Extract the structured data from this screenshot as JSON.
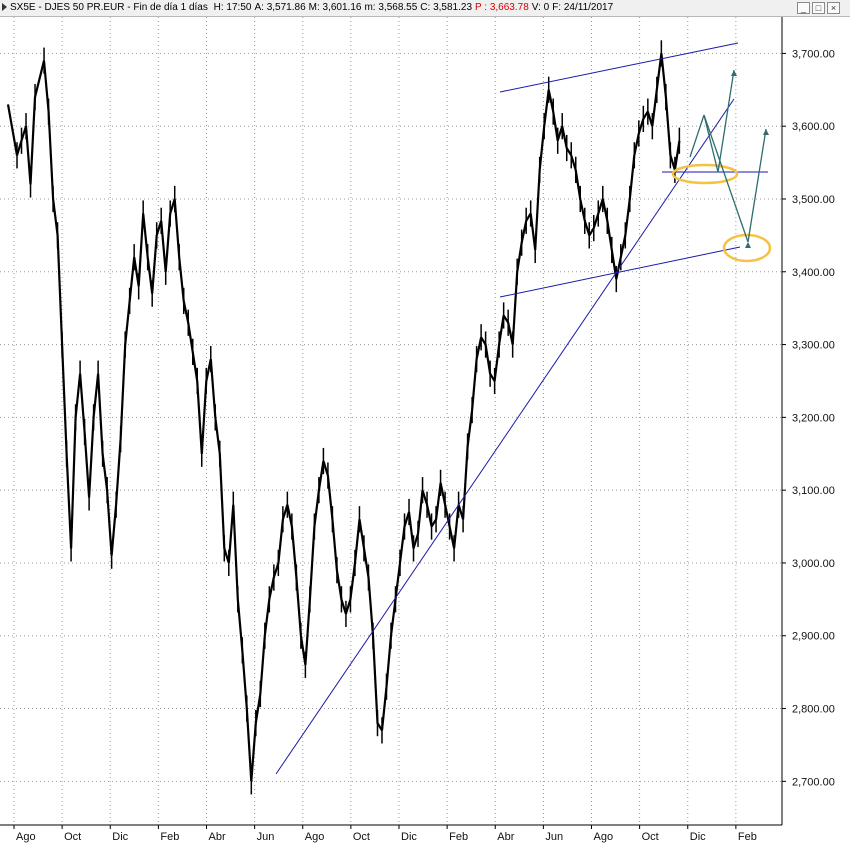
{
  "header": {
    "symbol": "SX5E - DJES 50 PR.EUR - Fin de día 1 días",
    "fields": [
      {
        "label": "H:",
        "value": "17:50",
        "color": "#000000"
      },
      {
        "label": "A:",
        "value": "3,571.86",
        "color": "#000000"
      },
      {
        "label": "M:",
        "value": "3,601.16",
        "color": "#000000"
      },
      {
        "label": "m:",
        "value": "3,568.55",
        "color": "#000000"
      },
      {
        "label": "C:",
        "value": "3,581.23",
        "color": "#000000"
      },
      {
        "label": "P :",
        "value": "3,663.78",
        "color": "#d40000"
      },
      {
        "label": "V:",
        "value": "0",
        "color": "#000000"
      },
      {
        "label": "F:",
        "value": "24/11/2017",
        "color": "#000000"
      }
    ],
    "window_buttons": [
      {
        "name": "minimize-button",
        "glyph": "_"
      },
      {
        "name": "maximize-button",
        "glyph": "□"
      },
      {
        "name": "close-button",
        "glyph": "×"
      }
    ]
  },
  "chart_data": {
    "type": "line",
    "title": "",
    "xlabel": "",
    "ylabel": "",
    "ylim": [
      2640,
      3750
    ],
    "grid": true,
    "y_ticks": [
      "2,700.00",
      "2,800.00",
      "2,900.00",
      "3,000.00",
      "3,100.00",
      "3,200.00",
      "3,300.00",
      "3,400.00",
      "3,500.00",
      "3,600.00",
      "3,700.00"
    ],
    "x_ticks": [
      "Ago",
      "Oct",
      "Dic",
      "Feb",
      "Abr",
      "Jun",
      "Ago",
      "Oct",
      "Dic",
      "Feb",
      "Abr",
      "Jun",
      "Ago",
      "Oct",
      "Dic",
      "Feb"
    ],
    "series": [
      {
        "color": "#000000",
        "points": [
          [
            0,
            3630
          ],
          [
            2,
            3560
          ],
          [
            3,
            3580
          ],
          [
            4,
            3600
          ],
          [
            5,
            3520
          ],
          [
            6,
            3640
          ],
          [
            8,
            3690
          ],
          [
            9,
            3620
          ],
          [
            10,
            3500
          ],
          [
            11,
            3450
          ],
          [
            12,
            3300
          ],
          [
            13,
            3150
          ],
          [
            14,
            3020
          ],
          [
            15,
            3200
          ],
          [
            16,
            3260
          ],
          [
            17,
            3180
          ],
          [
            18,
            3090
          ],
          [
            19,
            3200
          ],
          [
            20,
            3260
          ],
          [
            21,
            3150
          ],
          [
            22,
            3100
          ],
          [
            23,
            3010
          ],
          [
            24,
            3080
          ],
          [
            25,
            3170
          ],
          [
            26,
            3300
          ],
          [
            27,
            3360
          ],
          [
            28,
            3420
          ],
          [
            29,
            3380
          ],
          [
            30,
            3480
          ],
          [
            31,
            3420
          ],
          [
            32,
            3370
          ],
          [
            33,
            3450
          ],
          [
            34,
            3470
          ],
          [
            35,
            3400
          ],
          [
            36,
            3480
          ],
          [
            37,
            3500
          ],
          [
            38,
            3420
          ],
          [
            39,
            3360
          ],
          [
            40,
            3330
          ],
          [
            41,
            3290
          ],
          [
            42,
            3250
          ],
          [
            43,
            3150
          ],
          [
            44,
            3250
          ],
          [
            45,
            3280
          ],
          [
            46,
            3200
          ],
          [
            47,
            3150
          ],
          [
            48,
            3020
          ],
          [
            49,
            3000
          ],
          [
            50,
            3080
          ],
          [
            51,
            2950
          ],
          [
            52,
            2880
          ],
          [
            53,
            2800
          ],
          [
            54,
            2700
          ],
          [
            55,
            2780
          ],
          [
            56,
            2820
          ],
          [
            57,
            2900
          ],
          [
            58,
            2950
          ],
          [
            59,
            2980
          ],
          [
            60,
            3000
          ],
          [
            61,
            3060
          ],
          [
            62,
            3080
          ],
          [
            63,
            3050
          ],
          [
            64,
            2980
          ],
          [
            65,
            2900
          ],
          [
            66,
            2860
          ],
          [
            67,
            2950
          ],
          [
            68,
            3050
          ],
          [
            69,
            3100
          ],
          [
            70,
            3140
          ],
          [
            71,
            3120
          ],
          [
            72,
            3060
          ],
          [
            73,
            2990
          ],
          [
            74,
            2950
          ],
          [
            75,
            2930
          ],
          [
            76,
            2950
          ],
          [
            77,
            3000
          ],
          [
            78,
            3060
          ],
          [
            79,
            3020
          ],
          [
            80,
            2980
          ],
          [
            81,
            2900
          ],
          [
            82,
            2780
          ],
          [
            83,
            2770
          ],
          [
            84,
            2830
          ],
          [
            85,
            2900
          ],
          [
            86,
            2950
          ],
          [
            87,
            3000
          ],
          [
            88,
            3050
          ],
          [
            89,
            3070
          ],
          [
            90,
            3020
          ],
          [
            91,
            3040
          ],
          [
            92,
            3100
          ],
          [
            93,
            3080
          ],
          [
            94,
            3050
          ],
          [
            95,
            3060
          ],
          [
            96,
            3110
          ],
          [
            97,
            3080
          ],
          [
            98,
            3050
          ],
          [
            99,
            3020
          ],
          [
            100,
            3080
          ],
          [
            101,
            3060
          ],
          [
            102,
            3160
          ],
          [
            103,
            3210
          ],
          [
            104,
            3280
          ],
          [
            105,
            3310
          ],
          [
            106,
            3300
          ],
          [
            107,
            3260
          ],
          [
            108,
            3250
          ],
          [
            109,
            3300
          ],
          [
            110,
            3340
          ],
          [
            111,
            3330
          ],
          [
            112,
            3300
          ],
          [
            113,
            3400
          ],
          [
            114,
            3440
          ],
          [
            115,
            3470
          ],
          [
            116,
            3480
          ],
          [
            117,
            3430
          ],
          [
            118,
            3540
          ],
          [
            119,
            3600
          ],
          [
            120,
            3650
          ],
          [
            121,
            3620
          ],
          [
            122,
            3580
          ],
          [
            123,
            3600
          ],
          [
            124,
            3570
          ],
          [
            125,
            3560
          ],
          [
            126,
            3540
          ],
          [
            127,
            3500
          ],
          [
            128,
            3470
          ],
          [
            129,
            3450
          ],
          [
            130,
            3460
          ],
          [
            131,
            3480
          ],
          [
            132,
            3500
          ],
          [
            133,
            3470
          ],
          [
            134,
            3430
          ],
          [
            135,
            3390
          ],
          [
            136,
            3420
          ],
          [
            137,
            3450
          ],
          [
            138,
            3500
          ],
          [
            139,
            3560
          ],
          [
            140,
            3590
          ],
          [
            141,
            3610
          ],
          [
            142,
            3620
          ],
          [
            143,
            3600
          ],
          [
            144,
            3650
          ],
          [
            145,
            3700
          ],
          [
            146,
            3640
          ],
          [
            147,
            3560
          ],
          [
            148,
            3540
          ],
          [
            149,
            3580
          ]
        ]
      }
    ],
    "x_domain": [
      0,
      170
    ]
  }
}
